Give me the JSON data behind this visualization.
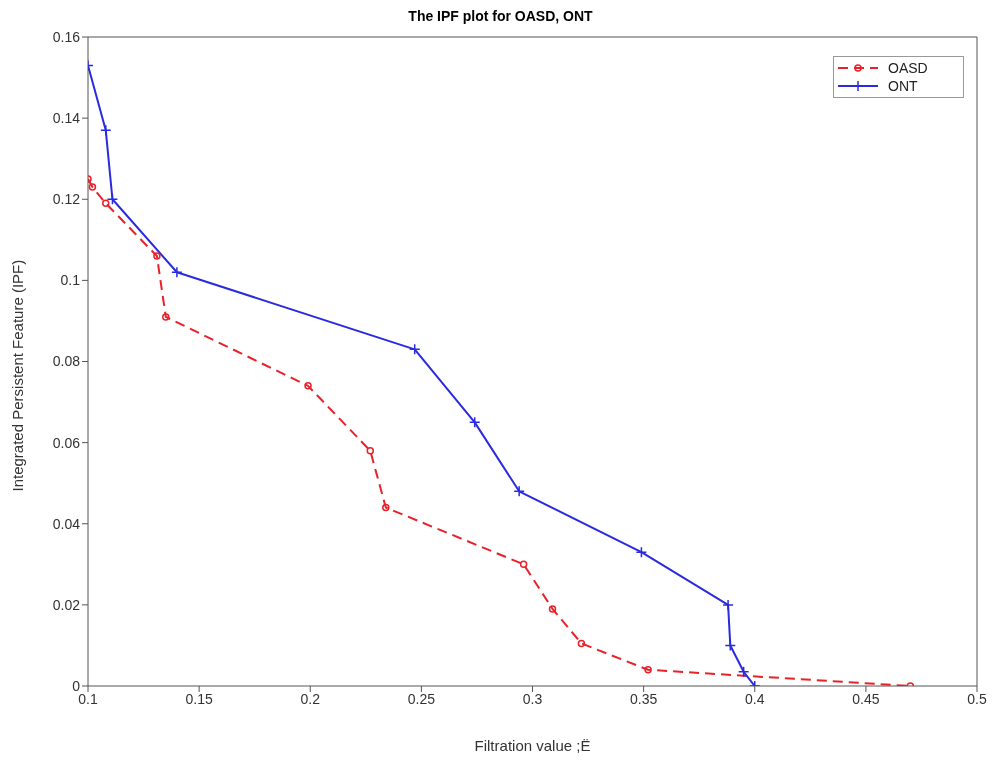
{
  "chart_data": {
    "type": "line",
    "title": "The IPF plot for OASD, ONT",
    "xlabel": "Filtration value ;Ë",
    "ylabel": "Integrated Persistent Feature (IPF)",
    "xlim": [
      0.1,
      0.5
    ],
    "xticks": [
      0.1,
      0.15,
      0.2,
      0.25,
      0.3,
      0.35,
      0.4,
      0.45,
      0.5
    ],
    "ylim": [
      0,
      0.16
    ],
    "yticks": [
      0,
      0.02,
      0.04,
      0.06,
      0.08,
      0.1,
      0.12,
      0.14,
      0.16
    ],
    "grid": false,
    "legend": "top right",
    "series": [
      {
        "name": "OASD",
        "color": "#e8212a",
        "line_style": "dashed",
        "marker": "circle",
        "x": [
          0.1,
          0.102,
          0.108,
          0.131,
          0.135,
          0.199,
          0.227,
          0.234,
          0.296,
          0.309,
          0.322,
          0.352,
          0.47
        ],
        "values": [
          0.125,
          0.123,
          0.119,
          0.106,
          0.091,
          0.074,
          0.058,
          0.044,
          0.03,
          0.019,
          0.0105,
          0.004,
          0.0
        ]
      },
      {
        "name": "ONT",
        "color": "#2a2ae0",
        "line_style": "solid",
        "marker": "cross",
        "x": [
          0.1,
          0.108,
          0.111,
          0.14,
          0.247,
          0.274,
          0.294,
          0.349,
          0.388,
          0.389,
          0.395,
          0.4
        ],
        "values": [
          0.153,
          0.137,
          0.12,
          0.102,
          0.083,
          0.065,
          0.048,
          0.033,
          0.02,
          0.01,
          0.0035,
          0.0
        ]
      }
    ]
  }
}
